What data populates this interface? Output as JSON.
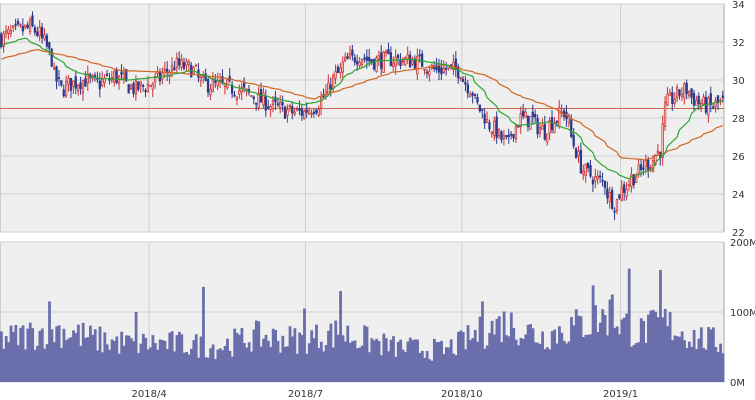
{
  "colors": {
    "background": "#ffffff",
    "plot_bg": "#efefef",
    "grid": "#cfcfcf",
    "border": "#aaaaaa",
    "up_candle": "#d03030",
    "down_candle": "#2a3a8c",
    "ma_short": "#2ca52c",
    "ma_long": "#d0651f",
    "ref_line": "#d06a4a",
    "volume_fill": "#6a6eaa"
  },
  "chart_data": [
    {
      "type": "candlestick",
      "title": "",
      "xlabel": "",
      "ylabel": "",
      "ylim": [
        22,
        34
      ],
      "yticks": [
        "22",
        "24",
        "26",
        "28",
        "30",
        "32",
        "34"
      ],
      "x_tick_labels": [
        "2018/4",
        "2018/7",
        "2018/10",
        "2019/1"
      ],
      "reference_line": 28.5,
      "close_anchors": [
        [
          "2018-01-04",
          32.2
        ],
        [
          "2018-01-12",
          32.5
        ],
        [
          "2018-01-22",
          32.8
        ],
        [
          "2018-01-30",
          32.0
        ],
        [
          "2018-02-05",
          30.2
        ],
        [
          "2018-02-08",
          29.5
        ],
        [
          "2018-02-14",
          29.8
        ],
        [
          "2018-02-22",
          30.0
        ],
        [
          "2018-03-02",
          29.8
        ],
        [
          "2018-03-12",
          30.2
        ],
        [
          "2018-03-23",
          29.5
        ],
        [
          "2018-04-02",
          29.8
        ],
        [
          "2018-04-16",
          30.8
        ],
        [
          "2018-04-25",
          30.6
        ],
        [
          "2018-05-02",
          29.8
        ],
        [
          "2018-05-10",
          29.7
        ],
        [
          "2018-05-22",
          29.5
        ],
        [
          "2018-06-01",
          29.1
        ],
        [
          "2018-06-12",
          28.6
        ],
        [
          "2018-06-22",
          28.3
        ],
        [
          "2018-06-29",
          28.3
        ],
        [
          "2018-07-09",
          28.8
        ],
        [
          "2018-07-18",
          30.2
        ],
        [
          "2018-07-25",
          31.0
        ],
        [
          "2018-08-01",
          31.3
        ],
        [
          "2018-08-08",
          31.0
        ],
        [
          "2018-08-20",
          31.1
        ],
        [
          "2018-08-31",
          31.0
        ],
        [
          "2018-09-07",
          30.9
        ],
        [
          "2018-09-14",
          30.5
        ],
        [
          "2018-09-21",
          30.6
        ],
        [
          "2018-09-28",
          30.5
        ],
        [
          "2018-10-05",
          29.4
        ],
        [
          "2018-10-12",
          28.1
        ],
        [
          "2018-10-19",
          27.3
        ],
        [
          "2018-10-26",
          26.6
        ],
        [
          "2018-11-02",
          28.0
        ],
        [
          "2018-11-09",
          27.9
        ],
        [
          "2018-11-16",
          27.3
        ],
        [
          "2018-11-22",
          27.9
        ],
        [
          "2018-11-28",
          28.3
        ],
        [
          "2018-12-03",
          27.0
        ],
        [
          "2018-12-07",
          25.5
        ],
        [
          "2018-12-14",
          24.9
        ],
        [
          "2018-12-21",
          24.6
        ],
        [
          "2018-12-27",
          23.5
        ],
        [
          "2019-01-04",
          24.6
        ],
        [
          "2019-01-11",
          25.2
        ],
        [
          "2019-01-18",
          25.8
        ],
        [
          "2019-01-23",
          26.3
        ],
        [
          "2019-01-25",
          28.5
        ],
        [
          "2019-01-31",
          29.1
        ],
        [
          "2019-02-07",
          29.5
        ],
        [
          "2019-02-14",
          28.8
        ],
        [
          "2019-02-21",
          28.6
        ],
        [
          "2019-02-28",
          28.8
        ]
      ],
      "ma_short_anchors": [
        [
          "2018-01-04",
          31.8
        ],
        [
          "2018-01-18",
          32.2
        ],
        [
          "2018-02-01",
          31.5
        ],
        [
          "2018-02-15",
          30.5
        ],
        [
          "2018-03-01",
          30.1
        ],
        [
          "2018-03-20",
          30.0
        ],
        [
          "2018-04-10",
          30.2
        ],
        [
          "2018-04-25",
          30.5
        ],
        [
          "2018-05-15",
          29.8
        ],
        [
          "2018-06-05",
          29.2
        ],
        [
          "2018-06-29",
          28.7
        ],
        [
          "2018-07-10",
          28.9
        ],
        [
          "2018-07-25",
          30.3
        ],
        [
          "2018-08-10",
          31.0
        ],
        [
          "2018-08-31",
          31.1
        ],
        [
          "2018-09-20",
          30.8
        ],
        [
          "2018-10-05",
          30.2
        ],
        [
          "2018-10-20",
          28.5
        ],
        [
          "2018-11-01",
          27.6
        ],
        [
          "2018-11-20",
          27.8
        ],
        [
          "2018-12-05",
          27.2
        ],
        [
          "2018-12-20",
          25.5
        ],
        [
          "2019-01-04",
          24.8
        ],
        [
          "2019-01-18",
          25.3
        ],
        [
          "2019-02-01",
          27.0
        ],
        [
          "2019-02-14",
          28.6
        ],
        [
          "2019-02-28",
          28.9
        ]
      ],
      "ma_long_anchors": [
        [
          "2018-01-04",
          31.1
        ],
        [
          "2018-01-25",
          31.6
        ],
        [
          "2018-02-15",
          31.2
        ],
        [
          "2018-03-15",
          30.5
        ],
        [
          "2018-04-15",
          30.4
        ],
        [
          "2018-05-15",
          30.1
        ],
        [
          "2018-06-15",
          29.5
        ],
        [
          "2018-07-05",
          29.0
        ],
        [
          "2018-07-25",
          29.6
        ],
        [
          "2018-08-20",
          30.4
        ],
        [
          "2018-09-20",
          30.8
        ],
        [
          "2018-10-15",
          30.2
        ],
        [
          "2018-11-01",
          29.2
        ],
        [
          "2018-11-20",
          28.6
        ],
        [
          "2018-12-10",
          27.6
        ],
        [
          "2019-01-01",
          25.9
        ],
        [
          "2019-01-15",
          25.8
        ],
        [
          "2019-02-01",
          26.4
        ],
        [
          "2019-02-28",
          27.6
        ]
      ]
    },
    {
      "type": "bar",
      "title": "",
      "ylim": [
        0,
        200
      ],
      "yticks": [
        "0M",
        "100M",
        "200M"
      ],
      "unit": "M",
      "volume_anchors": [
        [
          "2018-01-04",
          60
        ],
        [
          "2018-02-05",
          75
        ],
        [
          "2018-02-15",
          70
        ],
        [
          "2018-03-01",
          60
        ],
        [
          "2018-03-20",
          55
        ],
        [
          "2018-04-15",
          55
        ],
        [
          "2018-05-10",
          50
        ],
        [
          "2018-06-01",
          65
        ],
        [
          "2018-06-28",
          60
        ],
        [
          "2018-07-20",
          70
        ],
        [
          "2018-08-20",
          50
        ],
        [
          "2018-09-20",
          45
        ],
        [
          "2018-10-10",
          70
        ],
        [
          "2018-10-25",
          85
        ],
        [
          "2018-11-15",
          65
        ],
        [
          "2018-12-05",
          80
        ],
        [
          "2018-12-25",
          95
        ],
        [
          "2019-01-10",
          70
        ],
        [
          "2019-01-25",
          85
        ],
        [
          "2019-02-10",
          65
        ],
        [
          "2019-02-28",
          55
        ]
      ],
      "volume_peaks": [
        [
          "2018-02-01",
          115
        ],
        [
          "2018-03-23",
          100
        ],
        [
          "2018-05-02",
          136
        ],
        [
          "2018-06-29",
          105
        ],
        [
          "2018-07-20",
          130
        ],
        [
          "2018-10-11",
          115
        ],
        [
          "2018-12-14",
          138
        ],
        [
          "2018-12-26",
          125
        ],
        [
          "2019-01-04",
          162
        ],
        [
          "2019-01-23",
          160
        ]
      ]
    }
  ]
}
